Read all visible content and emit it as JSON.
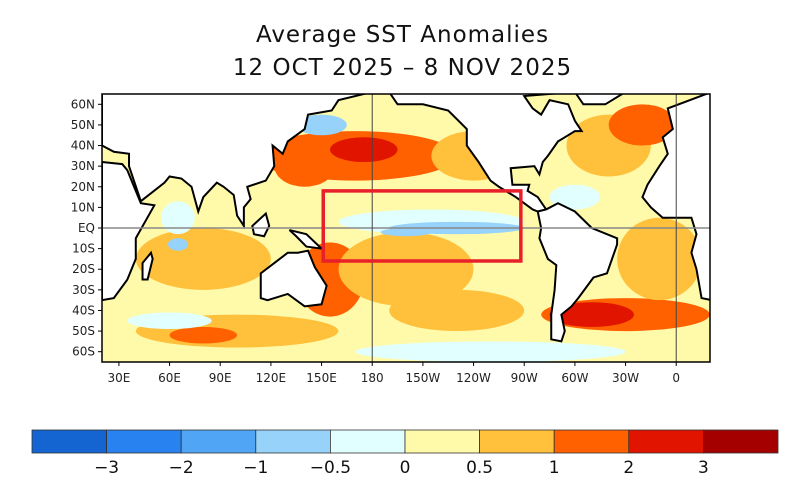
{
  "title": "Average SST Anomalies",
  "subtitle": "12 OCT 2025 – 8 NOV 2025",
  "map": {
    "lon_range": [
      20,
      380
    ],
    "lat_range": [
      -65,
      65
    ],
    "lat_labels": [
      {
        "lat": 60,
        "text": "60N"
      },
      {
        "lat": 50,
        "text": "50N"
      },
      {
        "lat": 40,
        "text": "40N"
      },
      {
        "lat": 30,
        "text": "30N"
      },
      {
        "lat": 20,
        "text": "20N"
      },
      {
        "lat": 10,
        "text": "10N"
      },
      {
        "lat": 0,
        "text": "EQ"
      },
      {
        "lat": -10,
        "text": "10S"
      },
      {
        "lat": -20,
        "text": "20S"
      },
      {
        "lat": -30,
        "text": "30S"
      },
      {
        "lat": -40,
        "text": "40S"
      },
      {
        "lat": -50,
        "text": "50S"
      },
      {
        "lat": -60,
        "text": "60S"
      }
    ],
    "lon_labels": [
      {
        "lon": 30,
        "text": "30E"
      },
      {
        "lon": 60,
        "text": "60E"
      },
      {
        "lon": 90,
        "text": "90E"
      },
      {
        "lon": 120,
        "text": "120E"
      },
      {
        "lon": 150,
        "text": "150E"
      },
      {
        "lon": 180,
        "text": "180"
      },
      {
        "lon": 210,
        "text": "150W"
      },
      {
        "lon": 240,
        "text": "120W"
      },
      {
        "lon": 270,
        "text": "90W"
      },
      {
        "lon": 300,
        "text": "60W"
      },
      {
        "lon": 330,
        "text": "30W"
      },
      {
        "lon": 360,
        "text": "0"
      }
    ],
    "highlight_box": {
      "lon": [
        151,
        268
      ],
      "lat": [
        -16,
        18
      ],
      "color": "#e8202a"
    }
  },
  "colorbar": {
    "colors": [
      "#1464d2",
      "#2882f0",
      "#50a5f5",
      "#96d2fa",
      "#e1ffff",
      "#fffaaa",
      "#ffc03c",
      "#ff6000",
      "#e11400",
      "#a50000"
    ],
    "labels": [
      "−3",
      "−2",
      "−1",
      "−0.5",
      "0",
      "0.5",
      "1",
      "2",
      "3"
    ]
  }
}
